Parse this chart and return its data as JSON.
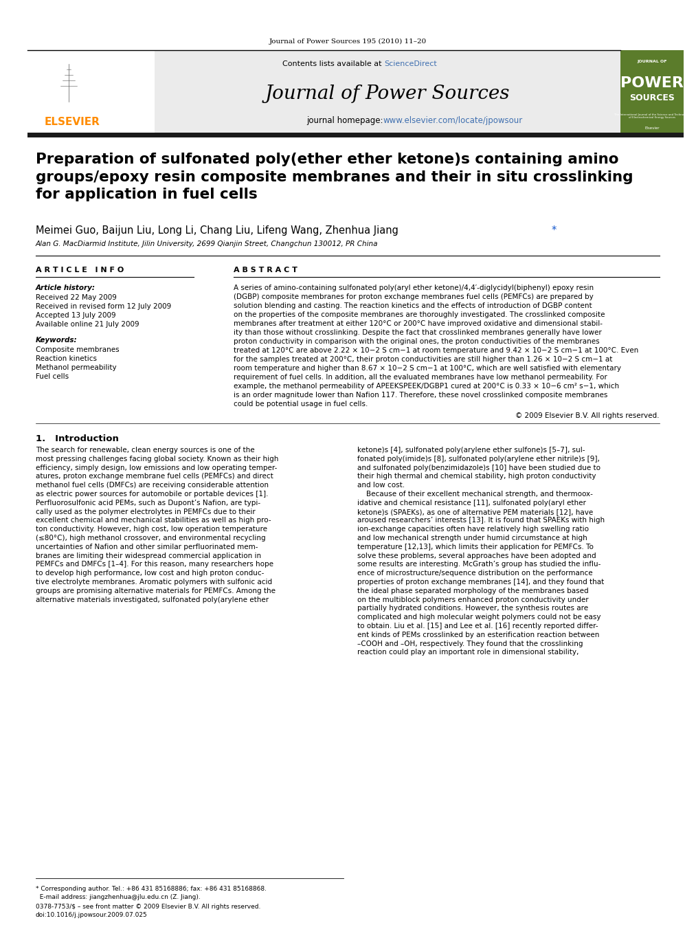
{
  "journal_header": "Journal of Power Sources 195 (2010) 11–20",
  "contents_line": "Contents lists available at ScienceDirect",
  "journal_name": "Journal of Power Sources",
  "journal_homepage": "journal homepage: www.elsevier.com/locate/jpowsour",
  "elsevier_color": "#FF8C00",
  "sciencedirect_color": "#4070B0",
  "homepage_color": "#4070B0",
  "header_bg": "#E8E8E8",
  "dark_bar_color": "#1A1A1A",
  "green_cover_color": "#5B7C2B",
  "title": "Preparation of sulfonated poly(ether ether ketone)s containing amino\ngroups/epoxy resin composite membranes and their in situ crosslinking\nfor application in fuel cells",
  "authors": "Meimei Guo, Baijun Liu, Long Li, Chang Liu, Lifeng Wang, Zhenhua Jiang",
  "affiliation": "Alan G. MacDiarmid Institute, Jilin University, 2699 Qianjin Street, Changchun 130012, PR China",
  "article_info_title": "A R T I C L E   I N F O",
  "abstract_title": "A B S T R A C T",
  "article_history_label": "Article history:",
  "received1": "Received 22 May 2009",
  "received2": "Received in revised form 12 July 2009",
  "accepted": "Accepted 13 July 2009",
  "available": "Available online 21 July 2009",
  "keywords_label": "Keywords:",
  "keyword1": "Composite membranes",
  "keyword2": "Reaction kinetics",
  "keyword3": "Methanol permeability",
  "keyword4": "Fuel cells",
  "abstract_text": "A series of amino-containing sulfonated poly(aryl ether ketone)/4,4′-diglycidyl(biphenyl) epoxy resin\n(DGBP) composite membranes for proton exchange membranes fuel cells (PEMFCs) are prepared by\nsolution blending and casting. The reaction kinetics and the effects of introduction of DGBP content\non the properties of the composite membranes are thoroughly investigated. The crosslinked composite\nmembranes after treatment at either 120°C or 200°C have improved oxidative and dimensional stabil-\nity than those without crosslinking. Despite the fact that crosslinked membranes generally have lower\nproton conductivity in comparison with the original ones, the proton conductivities of the membranes\ntreated at 120°C are above 2.22 × 10−2 S cm−1 at room temperature and 9.42 × 10−2 S cm−1 at 100°C. Even\nfor the samples treated at 200°C, their proton conductivities are still higher than 1.26 × 10−2 S cm−1 at\nroom temperature and higher than 8.67 × 10−2 S cm−1 at 100°C, which are well satisfied with elementary\nrequirement of fuel cells. In addition, all the evaluated membranes have low methanol permeability. For\nexample, the methanol permeability of APEEKSPEEK/DGBP1 cured at 200°C is 0.33 × 10−6 cm² s−1, which\nis an order magnitude lower than Nafion 117. Therefore, these novel crosslinked composite membranes\ncould be potential usage in fuel cells.",
  "copyright": "© 2009 Elsevier B.V. All rights reserved.",
  "section1_title": "1.   Introduction",
  "intro_col1": "The search for renewable, clean energy sources is one of the\nmost pressing challenges facing global society. Known as their high\nefficiency, simply design, low emissions and low operating temper-\natures, proton exchange membrane fuel cells (PEMFCs) and direct\nmethanol fuel cells (DMFCs) are receiving considerable attention\nas electric power sources for automobile or portable devices [1].\nPerfluorosulfonic acid PEMs, such as Dupont’s Nafion, are typi-\ncally used as the polymer electrolytes in PEMFCs due to their\nexcellent chemical and mechanical stabilities as well as high pro-\nton conductivity. However, high cost, low operation temperature\n(≤80°C), high methanol crossover, and environmental recycling\nuncertainties of Nafion and other similar perfluorinated mem-\nbranes are limiting their widespread commercial application in\nPEMFCs and DMFCs [1–4]. For this reason, many researchers hope\nto develop high performance, low cost and high proton conduc-\ntive electrolyte membranes. Aromatic polymers with sulfonic acid\ngroups are promising alternative materials for PEMFCs. Among the\nalternative materials investigated, sulfonated poly(arylene ether",
  "intro_col2": "ketone)s [4], sulfonated poly(arylene ether sulfone)s [5–7], sul-\nfonated poly(imide)s [8], sulfonated poly(arylene ether nitrile)s [9],\nand sulfonated poly(benzimidazole)s [10] have been studied due to\ntheir high thermal and chemical stability, high proton conductivity\nand low cost.\n    Because of their excellent mechanical strength, and thermoox-\nidative and chemical resistance [11], sulfonated poly(aryl ether\nketone)s (SPAEKs), as one of alternative PEM materials [12], have\naroused researchers’ interests [13]. It is found that SPAEKs with high\nion-exchange capacities often have relatively high swelling ratio\nand low mechanical strength under humid circumstance at high\ntemperature [12,13], which limits their application for PEMFCs. To\nsolve these problems, several approaches have been adopted and\nsome results are interesting. McGrath’s group has studied the influ-\nence of microstructure/sequence distribution on the performance\nproperties of proton exchange membranes [14], and they found that\nthe ideal phase separated morphology of the membranes based\non the multiblock polymers enhanced proton conductivity under\npartially hydrated conditions. However, the synthesis routes are\ncomplicated and high molecular weight polymers could not be easy\nto obtain. Liu et al. [15] and Lee et al. [16] recently reported differ-\nent kinds of PEMs crosslinked by an esterification reaction between\n–COOH and –OH, respectively. They found that the crosslinking\nreaction could play an important role in dimensional stability,",
  "footer_note_1": "* Corresponding author. Tel.: +86 431 85168886; fax: +86 431 85168868.",
  "footer_note_2": "  E-mail address: jiangzhenhua@jlu.edu.cn (Z. Jiang).",
  "issn_line": "0378-7753/$ – see front matter © 2009 Elsevier B.V. All rights reserved.",
  "doi_line": "doi:10.1016/j.jpowsour.2009.07.025"
}
